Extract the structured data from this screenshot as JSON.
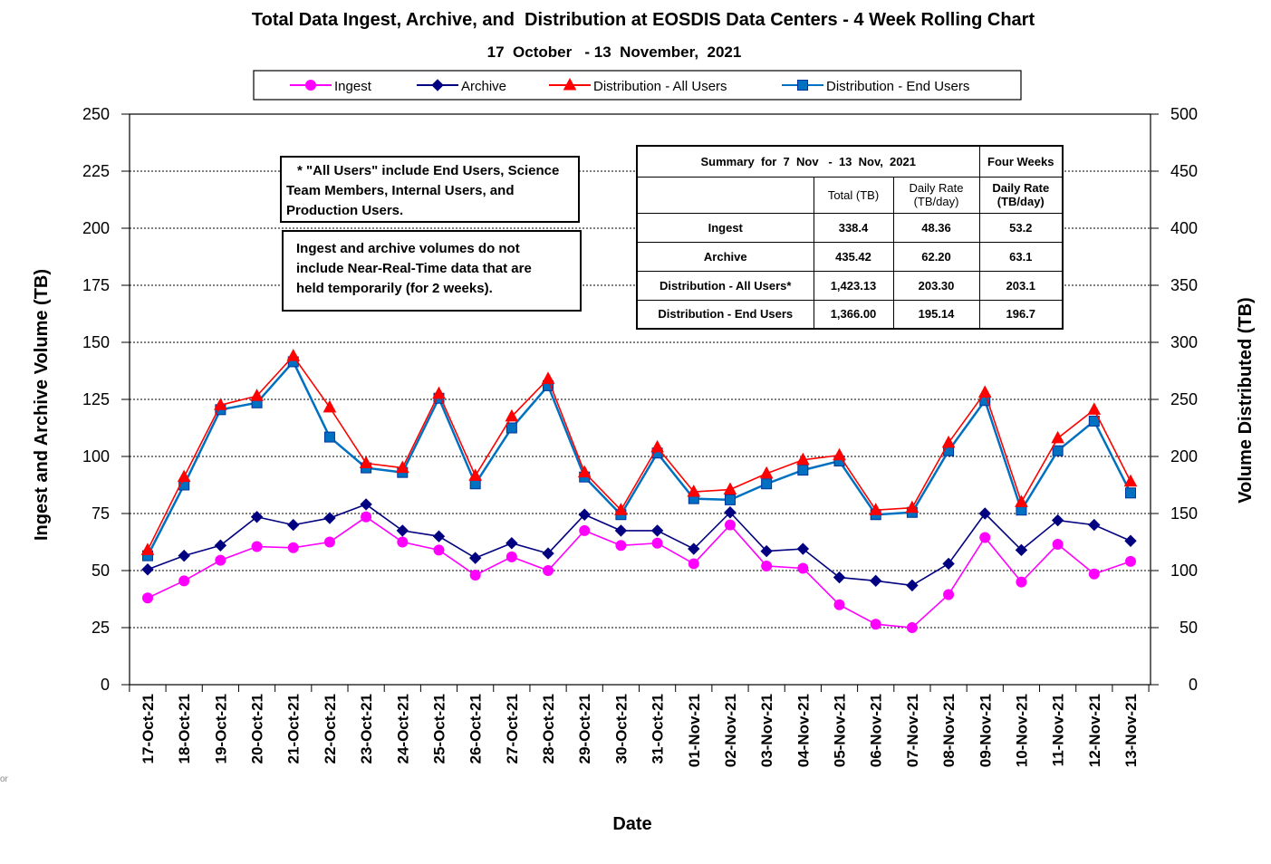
{
  "title": "Total Data Ingest, Archive, and  Distribution at EOSDIS Data Centers - 4 Week Rolling Chart",
  "subtitle": "17  October   - 13  November,  2021",
  "notes": {
    "all_users_lines": [
      "* \"All Users\" include End Users, Science",
      "Team Members,  Internal Users, and",
      "Production Users."
    ],
    "nrt_lines": [
      "Ingest and archive volumes do not",
      "include Near-Real-Time data that are",
      "held temporarily (for 2 weeks)."
    ]
  },
  "summary": {
    "header_title": "Summary  for  7  Nov   -  13  Nov,  2021",
    "header_four_weeks": "Four Weeks",
    "col_total": "Total (TB)",
    "col_daily": "Daily Rate (TB/day)",
    "col_four_daily": "Daily Rate (TB/day)",
    "rows": [
      {
        "label": "Ingest",
        "total": "338.4",
        "daily": "48.36",
        "four": "53.2"
      },
      {
        "label": "Archive",
        "total": "435.42",
        "daily": "62.20",
        "four": "63.1"
      },
      {
        "label": "Distribution - All Users*",
        "total": "1,423.13",
        "daily": "203.30",
        "four": "203.1"
      },
      {
        "label": "Distribution - End Users",
        "total": "1,366.00",
        "daily": "195.14",
        "four": "196.7"
      }
    ]
  },
  "edge_fragment": "or",
  "chart_data": {
    "type": "line",
    "title": "Total Data Ingest, Archive, and  Distribution at EOSDIS Data Centers - 4 Week Rolling Chart",
    "subtitle": "17  October   - 13  November,  2021",
    "xlabel": "Date",
    "ylabel": "Ingest and Archive Volume (TB)",
    "y2label": "Volume Distributed (TB)",
    "ylim": [
      0,
      250
    ],
    "y2lim": [
      0,
      500
    ],
    "yticks": [
      0,
      25,
      50,
      75,
      100,
      125,
      150,
      175,
      200,
      225,
      250
    ],
    "y2ticks": [
      0,
      50,
      100,
      150,
      200,
      250,
      300,
      350,
      400,
      450,
      500
    ],
    "grid": "horizontal dashed",
    "legend_position": "top",
    "categories": [
      "17-Oct-21",
      "18-Oct-21",
      "19-Oct-21",
      "20-Oct-21",
      "21-Oct-21",
      "22-Oct-21",
      "23-Oct-21",
      "24-Oct-21",
      "25-Oct-21",
      "26-Oct-21",
      "27-Oct-21",
      "28-Oct-21",
      "29-Oct-21",
      "30-Oct-21",
      "31-Oct-21",
      "01-Nov-21",
      "02-Nov-21",
      "03-Nov-21",
      "04-Nov-21",
      "05-Nov-21",
      "06-Nov-21",
      "07-Nov-21",
      "08-Nov-21",
      "09-Nov-21",
      "10-Nov-21",
      "11-Nov-21",
      "12-Nov-21",
      "13-Nov-21"
    ],
    "series": [
      {
        "name": "Ingest",
        "axis": "left",
        "color": "#ff00ff",
        "marker": "circle",
        "values": [
          38,
          45.5,
          54.5,
          60.5,
          60,
          62.5,
          73.5,
          62.5,
          59,
          48,
          56,
          50,
          67.5,
          61,
          62,
          53,
          70,
          52,
          51,
          35,
          26.5,
          25,
          39.5,
          64.5,
          45,
          61.5,
          48.5,
          54
        ]
      },
      {
        "name": "Archive",
        "axis": "left",
        "color": "#000080",
        "marker": "diamond",
        "values": [
          50.5,
          56.5,
          61,
          73.5,
          70,
          73,
          79,
          67.5,
          65,
          55.5,
          62,
          57.5,
          74.5,
          67.5,
          67.5,
          59.5,
          75.5,
          58.5,
          59.5,
          47,
          45.5,
          43.5,
          53,
          75,
          59,
          72,
          70,
          63
        ]
      },
      {
        "name": "Distribution - All Users",
        "axis": "right",
        "color": "#ff0000",
        "marker": "triangle",
        "values": [
          118,
          182,
          245,
          253,
          288,
          243,
          194,
          190,
          255,
          183,
          235,
          268,
          186,
          153,
          208,
          169,
          171,
          185,
          197,
          201,
          153,
          155,
          212,
          256,
          160,
          216,
          241,
          178
        ]
      },
      {
        "name": "Distribution - End Users",
        "axis": "right",
        "color": "#0070c0",
        "marker": "square",
        "values": [
          113,
          175,
          241,
          247,
          283,
          217,
          190,
          186,
          251,
          176,
          225,
          262,
          182,
          149,
          203,
          163,
          162,
          176,
          188,
          196,
          149,
          151,
          205,
          249,
          153,
          205,
          231,
          168
        ]
      }
    ]
  }
}
